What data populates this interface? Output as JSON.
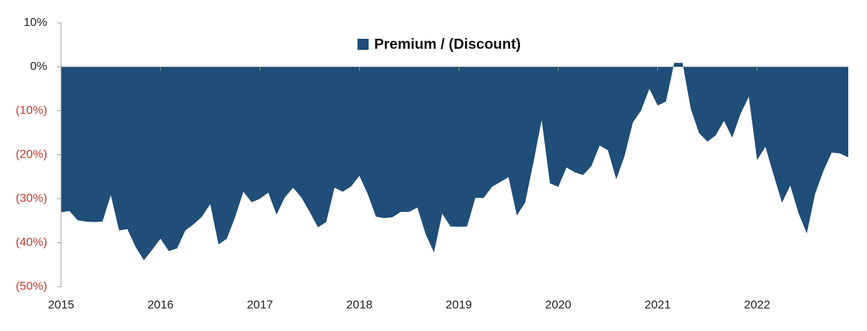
{
  "chart_data": {
    "type": "area",
    "categories": [
      "2015",
      null,
      null,
      null,
      null,
      null,
      null,
      null,
      null,
      null,
      null,
      null,
      "2016",
      null,
      null,
      null,
      null,
      null,
      null,
      null,
      null,
      null,
      null,
      null,
      "2017",
      null,
      null,
      null,
      null,
      null,
      null,
      null,
      null,
      null,
      null,
      null,
      "2018",
      null,
      null,
      null,
      null,
      null,
      null,
      null,
      null,
      null,
      null,
      null,
      "2019",
      null,
      null,
      null,
      null,
      null,
      null,
      null,
      null,
      null,
      null,
      null,
      "2020",
      null,
      null,
      null,
      null,
      null,
      null,
      null,
      null,
      null,
      null,
      null,
      "2021",
      null,
      null,
      null,
      null,
      null,
      null,
      null,
      null,
      null,
      null,
      null,
      "2022",
      null,
      null,
      null,
      null,
      null,
      null,
      null,
      null,
      null,
      null,
      null
    ],
    "series": [
      {
        "name": "Premium / (Discount)",
        "color": "#1f4e79",
        "values": [
          -33.1,
          -32.8,
          -34.9,
          -35.2,
          -35.3,
          -35.2,
          -29.2,
          -37.2,
          -36.9,
          -41.0,
          -44.0,
          -41.6,
          -39.1,
          -41.9,
          -41.3,
          -37.2,
          -35.8,
          -34.1,
          -31.2,
          -40.4,
          -39.1,
          -34.2,
          -28.4,
          -30.8,
          -30.0,
          -28.6,
          -33.6,
          -29.7,
          -27.5,
          -29.7,
          -33.0,
          -36.5,
          -35.3,
          -27.5,
          -28.4,
          -27.2,
          -24.8,
          -28.9,
          -34.1,
          -34.4,
          -34.2,
          -33.0,
          -33.0,
          -32.0,
          -38.1,
          -42.2,
          -33.4,
          -36.3,
          -36.4,
          -36.3,
          -29.8,
          -29.8,
          -27.3,
          -26.2,
          -25.1,
          -33.8,
          -30.9,
          -21.8,
          -12.1,
          -26.5,
          -27.3,
          -22.9,
          -24.0,
          -24.6,
          -22.6,
          -17.9,
          -19.0,
          -25.6,
          -20.3,
          -12.7,
          -9.9,
          -5.0,
          -8.8,
          -7.9,
          0.9,
          0.9,
          -9.6,
          -15.1,
          -17.0,
          -15.6,
          -12.3,
          -16.1,
          -10.7,
          -6.8,
          -21.2,
          -18.2,
          -24.6,
          -30.9,
          -27.0,
          -33.3,
          -37.9,
          -28.9,
          -23.7,
          -19.5,
          -19.7,
          -20.6
        ]
      }
    ],
    "ylim": [
      -50,
      10
    ],
    "yticks": [
      {
        "value": 10,
        "label": "10%"
      },
      {
        "value": 0,
        "label": "0%"
      },
      {
        "value": -10,
        "label": "(10%)"
      },
      {
        "value": -20,
        "label": "(20%)"
      },
      {
        "value": -30,
        "label": "(30%)"
      },
      {
        "value": -40,
        "label": "(40%)"
      },
      {
        "value": -50,
        "label": "(50%)"
      }
    ],
    "negative_tick_color": "#c0392b",
    "legend": "top"
  }
}
